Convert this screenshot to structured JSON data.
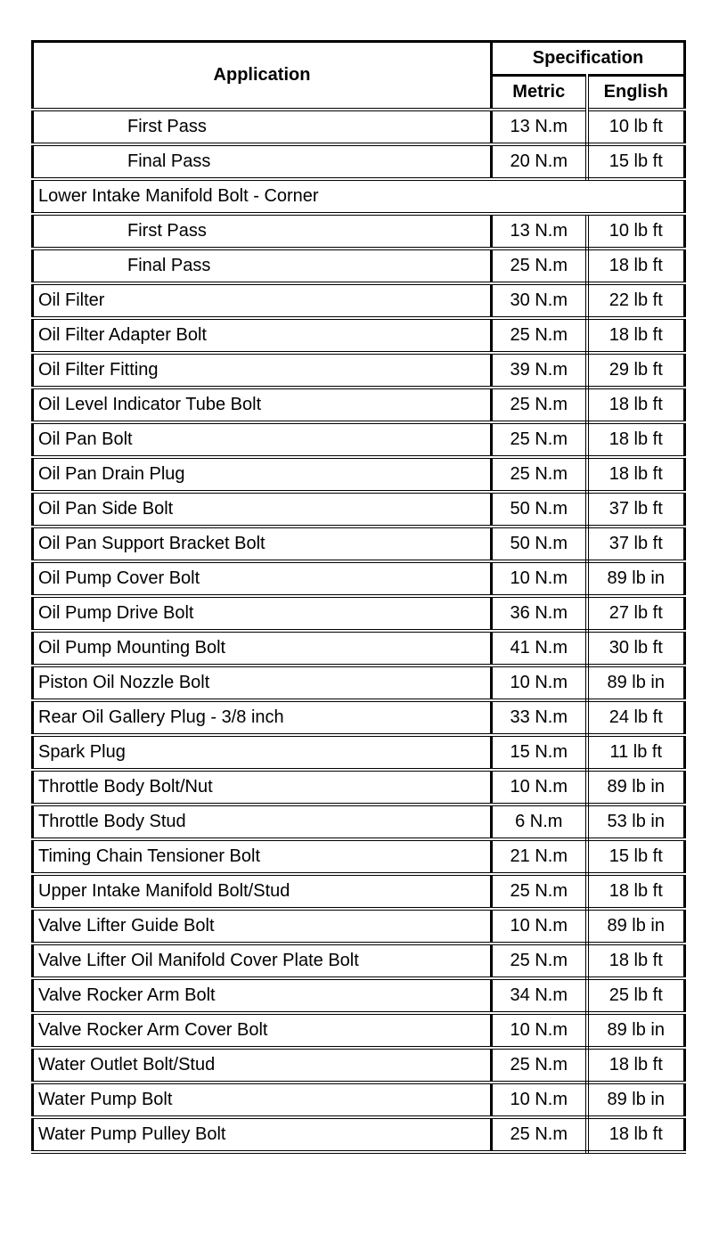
{
  "header": {
    "application": "Application",
    "specification": "Specification",
    "metric": "Metric",
    "english": "English"
  },
  "rows": [
    {
      "application": "First Pass",
      "metric": "13 N.m",
      "english": "10 lb ft",
      "indent": true
    },
    {
      "application": "Final Pass",
      "metric": "20 N.m",
      "english": "15 lb ft",
      "indent": true
    },
    {
      "application": "Lower Intake Manifold Bolt - Corner",
      "span": true
    },
    {
      "application": "First Pass",
      "metric": "13 N.m",
      "english": "10 lb ft",
      "indent": true
    },
    {
      "application": "Final Pass",
      "metric": "25 N.m",
      "english": "18 lb ft",
      "indent": true
    },
    {
      "application": "Oil Filter",
      "metric": "30 N.m",
      "english": "22 lb ft"
    },
    {
      "application": "Oil Filter Adapter Bolt",
      "metric": "25 N.m",
      "english": "18 lb ft"
    },
    {
      "application": "Oil Filter Fitting",
      "metric": "39 N.m",
      "english": "29 lb ft"
    },
    {
      "application": "Oil Level Indicator Tube Bolt",
      "metric": "25 N.m",
      "english": "18 lb ft"
    },
    {
      "application": "Oil Pan Bolt",
      "metric": "25 N.m",
      "english": "18 lb ft"
    },
    {
      "application": "Oil Pan Drain Plug",
      "metric": "25 N.m",
      "english": "18 lb ft"
    },
    {
      "application": "Oil Pan Side Bolt",
      "metric": "50 N.m",
      "english": "37 lb ft"
    },
    {
      "application": "Oil Pan Support Bracket Bolt",
      "metric": "50 N.m",
      "english": "37 lb ft"
    },
    {
      "application": "Oil Pump Cover Bolt",
      "metric": "10 N.m",
      "english": "89 lb in"
    },
    {
      "application": "Oil Pump Drive Bolt",
      "metric": "36 N.m",
      "english": "27 lb ft"
    },
    {
      "application": "Oil Pump Mounting Bolt",
      "metric": "41 N.m",
      "english": "30 lb ft"
    },
    {
      "application": "Piston Oil Nozzle Bolt",
      "metric": "10 N.m",
      "english": "89 lb in"
    },
    {
      "application": "Rear Oil Gallery Plug - 3/8 inch",
      "metric": "33 N.m",
      "english": "24 lb ft"
    },
    {
      "application": "Spark Plug",
      "metric": "15 N.m",
      "english": "11 lb ft"
    },
    {
      "application": "Throttle Body Bolt/Nut",
      "metric": "10 N.m",
      "english": "89 lb in"
    },
    {
      "application": "Throttle Body Stud",
      "metric": "6 N.m",
      "english": "53 lb in"
    },
    {
      "application": "Timing Chain Tensioner Bolt",
      "metric": "21 N.m",
      "english": "15 lb ft"
    },
    {
      "application": "Upper Intake Manifold Bolt/Stud",
      "metric": "25 N.m",
      "english": "18 lb ft"
    },
    {
      "application": "Valve Lifter Guide Bolt",
      "metric": "10 N.m",
      "english": "89 lb in"
    },
    {
      "application": "Valve Lifter Oil Manifold Cover Plate Bolt",
      "metric": "25 N.m",
      "english": "18 lb ft"
    },
    {
      "application": "Valve Rocker Arm Bolt",
      "metric": "34 N.m",
      "english": "25 lb ft"
    },
    {
      "application": "Valve Rocker Arm Cover Bolt",
      "metric": "10 N.m",
      "english": "89 lb in"
    },
    {
      "application": "Water Outlet Bolt/Stud",
      "metric": "25 N.m",
      "english": "18 lb ft"
    },
    {
      "application": "Water Pump Bolt",
      "metric": "10 N.m",
      "english": "89 lb in"
    },
    {
      "application": "Water Pump Pulley Bolt",
      "metric": "25 N.m",
      "english": "18 lb ft"
    }
  ]
}
